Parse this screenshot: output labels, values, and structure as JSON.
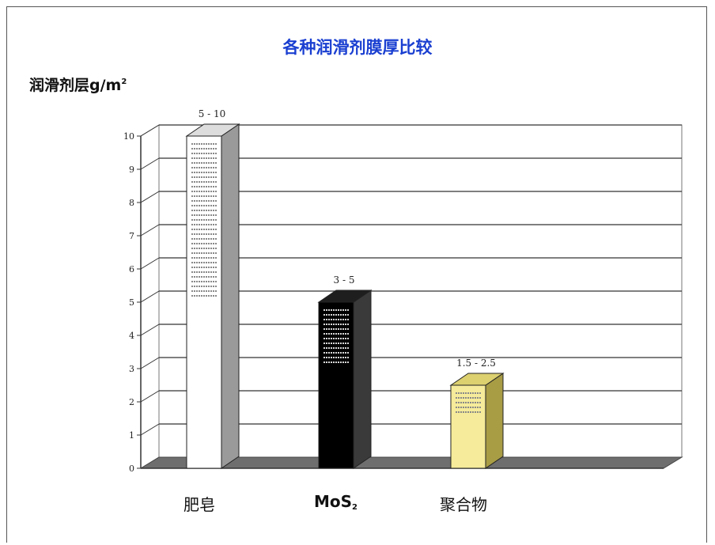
{
  "chart_data": {
    "type": "bar",
    "title": "各种润滑剂膜厚比较",
    "ylabel_text": "润滑剂层g/m",
    "ylabel_sup": "2",
    "categories": [
      "肥皂",
      "MoS",
      "聚合物"
    ],
    "category_subscripts": [
      "",
      "2",
      ""
    ],
    "values": [
      10,
      5,
      2.5
    ],
    "value_ranges": [
      [
        5,
        10
      ],
      [
        3,
        5
      ],
      [
        1.5,
        2.5
      ]
    ],
    "data_labels": [
      "5 - 10",
      "3 - 5",
      "1.5 - 2.5"
    ],
    "yticks": [
      "0",
      "1",
      "2",
      "3",
      "4",
      "5",
      "6",
      "7",
      "8",
      "9",
      "10"
    ],
    "ylim": [
      0,
      10
    ],
    "grid": true,
    "style": "3d-column",
    "bar_colors": [
      "#ffffff",
      "#000000",
      "#f5eb9a"
    ],
    "bar_side_colors": [
      "#9a9a9a",
      "#3a3a3a",
      "#a89c45"
    ],
    "bar_top_colors": [
      "#dddddd",
      "#1e1e1e",
      "#dcd06f"
    ]
  }
}
